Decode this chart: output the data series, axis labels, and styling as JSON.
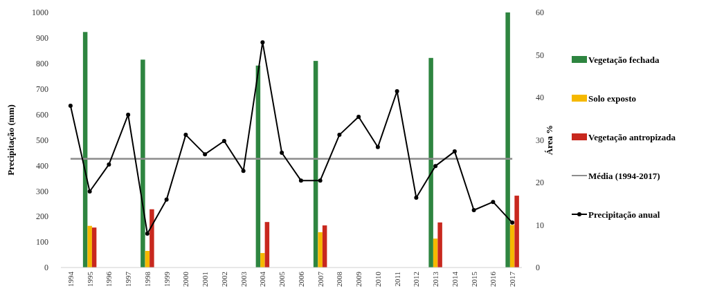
{
  "chart_data": {
    "type": "bar",
    "xlabel": null,
    "ylabel": "Precipitação (mm)",
    "y2label": "Área %",
    "categories": [
      "1994",
      "1995",
      "1996",
      "1997",
      "1998",
      "1999",
      "2000",
      "2001",
      "2002",
      "2003",
      "2004",
      "2005",
      "2006",
      "2007",
      "2008",
      "2009",
      "2010",
      "2011",
      "2012",
      "2013",
      "2014",
      "2015",
      "2016",
      "2017"
    ],
    "series": [
      {
        "name": "Vegetação fechada",
        "color": "#2e8540",
        "axis": "y2",
        "values": [
          null,
          55.4,
          null,
          null,
          48.9,
          null,
          null,
          null,
          null,
          null,
          47.5,
          null,
          null,
          48.6,
          null,
          null,
          null,
          null,
          null,
          49.3,
          null,
          null,
          null,
          60
        ]
      },
      {
        "name": "Solo exposto",
        "color": "#f5b800",
        "axis": "y2",
        "values": [
          null,
          9.8,
          null,
          null,
          3.9,
          null,
          null,
          null,
          null,
          null,
          3.4,
          null,
          null,
          8.3,
          null,
          null,
          null,
          null,
          null,
          6.8,
          null,
          null,
          null,
          10
        ]
      },
      {
        "name": "Vegetação antropizada",
        "color": "#c8281e",
        "axis": "y2",
        "values": [
          null,
          9.4,
          null,
          null,
          13.7,
          null,
          null,
          null,
          null,
          null,
          10.7,
          null,
          null,
          9.9,
          null,
          null,
          null,
          null,
          null,
          10.6,
          null,
          null,
          null,
          16.9
        ]
      },
      {
        "name": "Precipitação anual",
        "type": "line",
        "color": "#000000",
        "axis": "y",
        "marker": "circle",
        "values": [
          634,
          298,
          404,
          599,
          133,
          266,
          520,
          444,
          496,
          379,
          883,
          450,
          341,
          341,
          520,
          591,
          472,
          691,
          274,
          398,
          455,
          225,
          257,
          176
        ]
      }
    ],
    "ref_lines": [
      {
        "axis": "y",
        "value": 426,
        "label": "Média (1994-2017)",
        "color": "#8c8c8c"
      }
    ],
    "ylim": [
      0,
      1000
    ],
    "yticks": [
      0,
      100,
      200,
      300,
      400,
      500,
      600,
      700,
      800,
      900,
      1000
    ],
    "y2lim": [
      0,
      60
    ],
    "y2ticks": [
      0,
      10,
      20,
      30,
      40,
      50,
      60
    ],
    "legend": "right"
  }
}
